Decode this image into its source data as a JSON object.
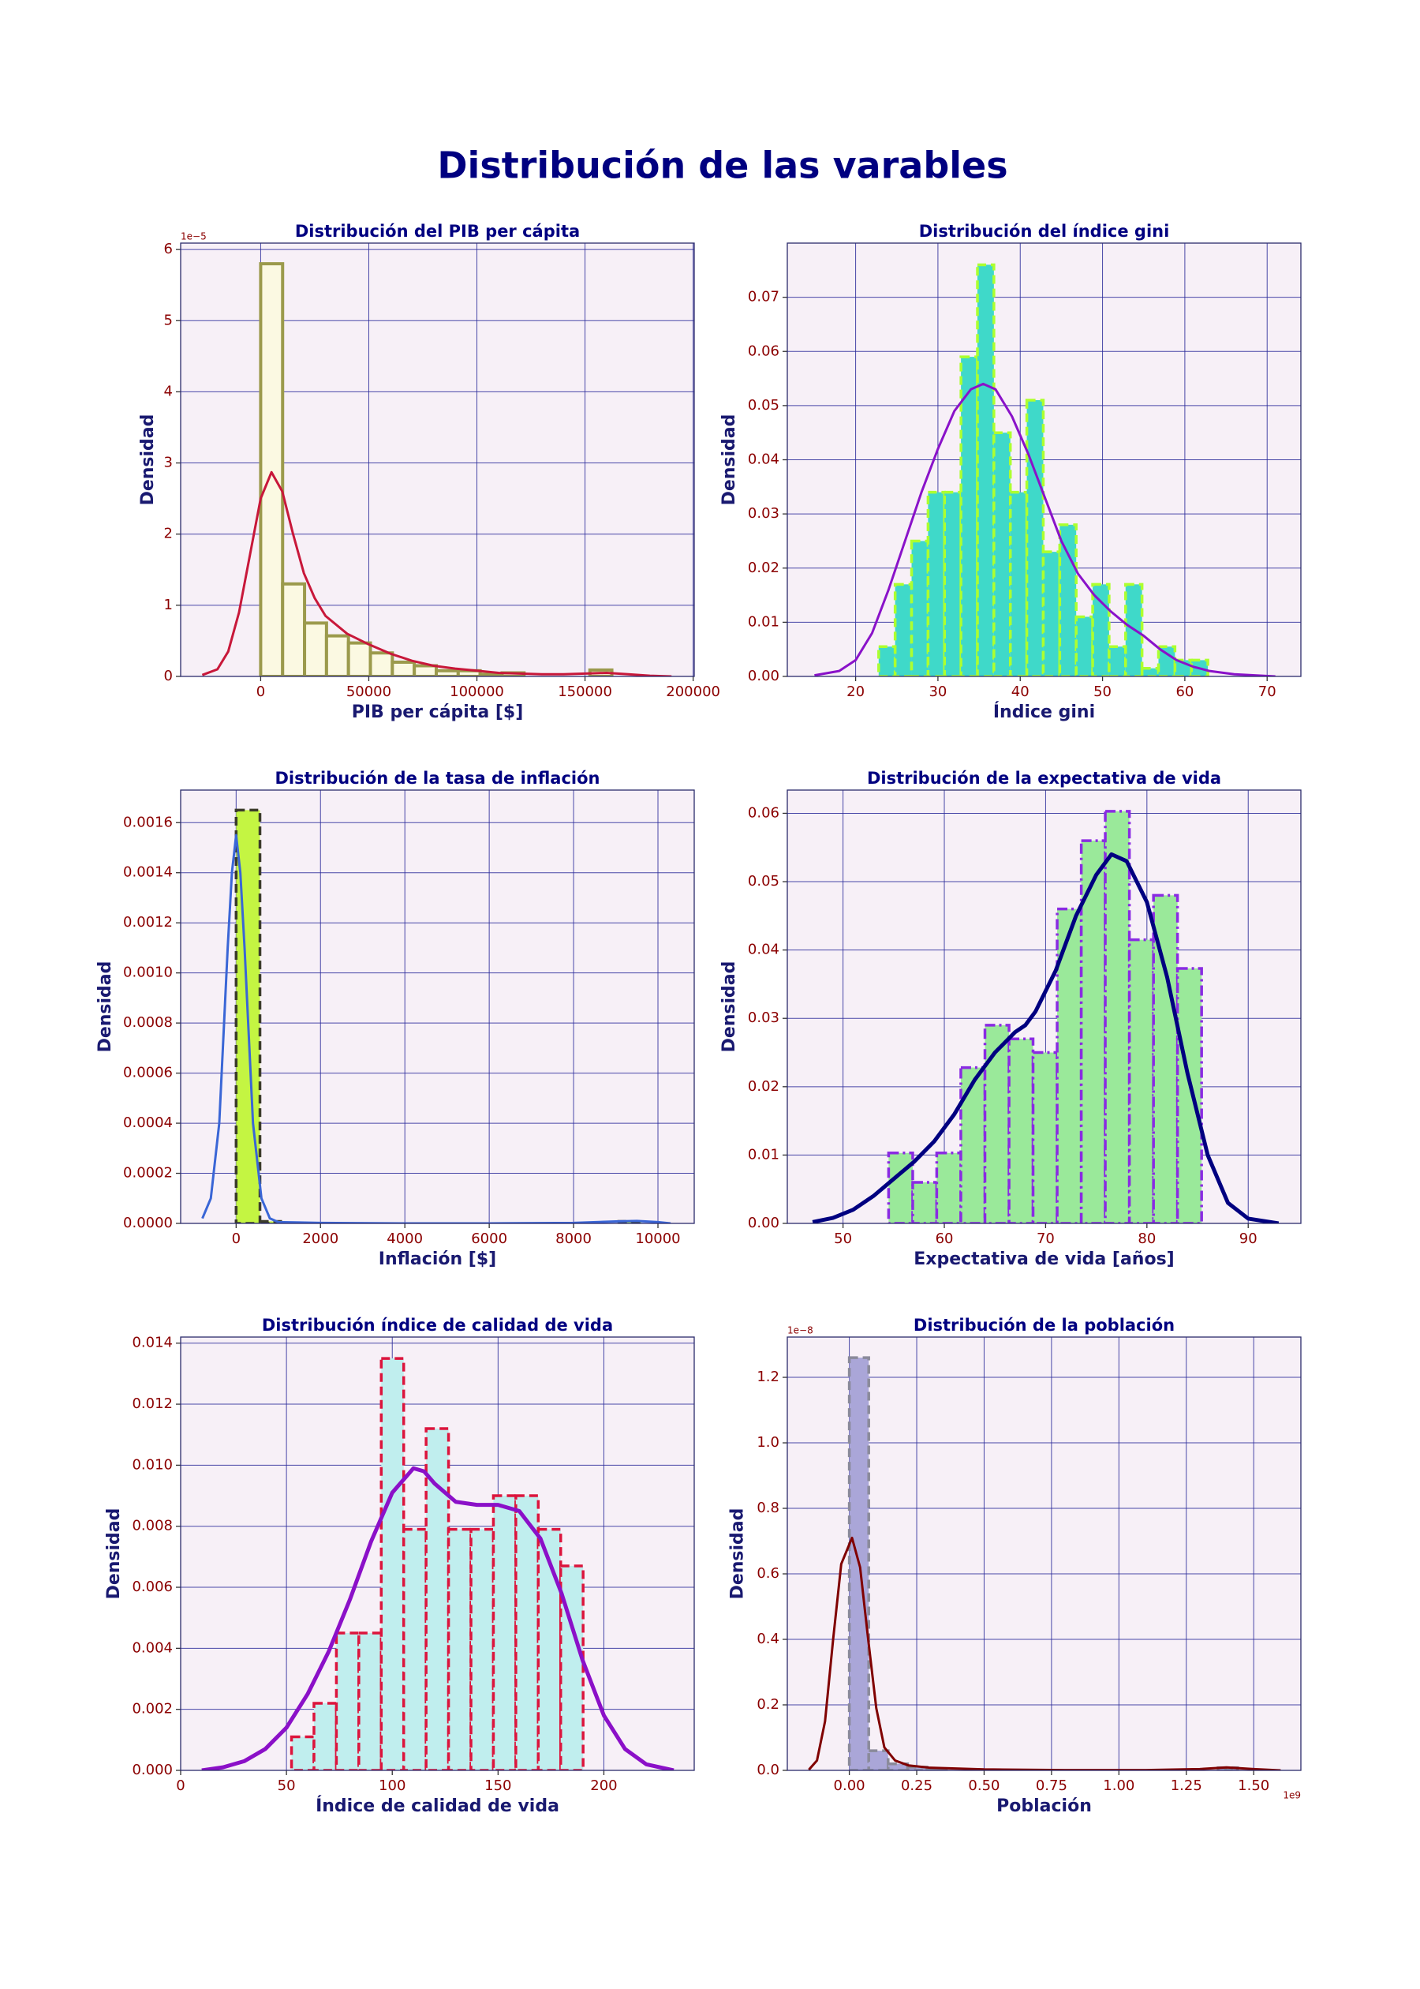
{
  "title": "Distribución de las varables",
  "chart_data": [
    {
      "type": "histogram",
      "title": "Distribución del PIB per cápita",
      "xlabel": "PIB per cápita [$]",
      "ylabel": "Densidad",
      "y_offset": "1e−5",
      "bins": [
        0,
        10150,
        20300,
        30450,
        40600,
        50750,
        60900,
        71050,
        81200,
        91350,
        101500,
        111650,
        121800,
        131950,
        142100,
        152250,
        162400
      ],
      "values": [
        5.8,
        1.3,
        0.75,
        0.57,
        0.47,
        0.33,
        0.2,
        0.15,
        0.08,
        0.08,
        0.03,
        0.05,
        0,
        0,
        0,
        0.09
      ],
      "color": "#fbf9e2",
      "edgecolor": "#9b9a4c",
      "edge_style": "solid",
      "kde": {
        "color": "#c8183a",
        "x": [
          -27000,
          -20000,
          -15000,
          -10000,
          -5000,
          0,
          5000,
          10000,
          15000,
          20000,
          25000,
          30000,
          40000,
          50000,
          60000,
          70000,
          80000,
          90000,
          100000,
          110000,
          120000,
          130000,
          140000,
          150000,
          160000,
          170000,
          180000,
          190000
        ],
        "y": [
          0.02,
          0.1,
          0.35,
          0.9,
          1.7,
          2.5,
          2.87,
          2.6,
          2.0,
          1.45,
          1.1,
          0.85,
          0.6,
          0.45,
          0.32,
          0.22,
          0.15,
          0.11,
          0.08,
          0.05,
          0.04,
          0.03,
          0.03,
          0.04,
          0.05,
          0.03,
          0.01,
          0.0
        ]
      },
      "xlim": [
        -37000,
        200500
      ],
      "ylim": [
        0,
        6.09
      ],
      "xticks": [
        0,
        50000,
        100000,
        150000,
        200000
      ],
      "yticks": [
        0,
        1,
        2,
        3,
        4,
        5,
        6
      ],
      "grid": true
    },
    {
      "type": "histogram",
      "title": "Distribución del índice gini",
      "xlabel": "Índice gini",
      "ylabel": "Densidad",
      "bins": [
        22.8,
        24.8,
        26.8,
        28.8,
        30.8,
        32.8,
        34.8,
        36.8,
        38.8,
        40.8,
        42.8,
        44.8,
        46.8,
        48.8,
        50.8,
        52.8,
        54.8,
        56.8,
        58.8,
        60.8,
        62.8
      ],
      "values": [
        0.0055,
        0.017,
        0.025,
        0.034,
        0.034,
        0.059,
        0.076,
        0.045,
        0.034,
        0.051,
        0.023,
        0.028,
        0.011,
        0.017,
        0.0055,
        0.017,
        0.0015,
        0.0055,
        0.003,
        0.003
      ],
      "color": "#3fd9c9",
      "edgecolor": "#adff2f",
      "edge_style": "dashed",
      "kde": {
        "color": "#8a12c9",
        "x": [
          15,
          18,
          20,
          22,
          24,
          26,
          28,
          30,
          32,
          34,
          35.5,
          37,
          39,
          41,
          43,
          45,
          47,
          49,
          51,
          53,
          55,
          57,
          59,
          61,
          63,
          66,
          71
        ],
        "y": [
          0.0002,
          0.001,
          0.003,
          0.008,
          0.016,
          0.025,
          0.034,
          0.042,
          0.049,
          0.053,
          0.054,
          0.053,
          0.048,
          0.041,
          0.033,
          0.025,
          0.019,
          0.015,
          0.012,
          0.0095,
          0.0075,
          0.005,
          0.003,
          0.0018,
          0.001,
          0.0004,
          0.0
        ]
      },
      "xlim": [
        11.7,
        74.1
      ],
      "ylim": [
        0,
        0.08
      ],
      "xticks": [
        20,
        30,
        40,
        50,
        60,
        70
      ],
      "yticks": [
        {
          "value": 0,
          "label": "0.00"
        },
        {
          "value": 0.01,
          "label": "0.01"
        },
        {
          "value": 0.02,
          "label": "0.02"
        },
        {
          "value": 0.03,
          "label": "0.03"
        },
        {
          "value": 0.04,
          "label": "0.04"
        },
        {
          "value": 0.05,
          "label": "0.05"
        },
        {
          "value": 0.06,
          "label": "0.06"
        },
        {
          "value": 0.07,
          "label": "0.07"
        }
      ],
      "grid": true
    },
    {
      "type": "histogram",
      "title": "Distribución de la tasa de inflación",
      "xlabel": "Inflación [$]",
      "ylabel": "Densidad",
      "bins": [
        0,
        565,
        1130,
        1695,
        2260,
        2825,
        3390,
        3955,
        4520,
        5085,
        5650,
        6215,
        6780,
        7345,
        7910,
        8475,
        9040,
        9605,
        10170
      ],
      "values": [
        0.00165,
        8e-06,
        0,
        0,
        0,
        0,
        0,
        0,
        0,
        0,
        0,
        0,
        0,
        0,
        0,
        0,
        8e-06,
        0
      ],
      "color": "#c4f542",
      "edgecolor": "#3b3b2b",
      "edge_style": "dashed",
      "kde": {
        "color": "#3a66d6",
        "x": [
          -800,
          -600,
          -400,
          -200,
          -100,
          0,
          100,
          200,
          400,
          600,
          800,
          1000,
          2000,
          4000,
          6000,
          8000,
          9000,
          9500,
          10000,
          10300
        ],
        "y": [
          2e-05,
          0.0001,
          0.0004,
          0.0011,
          0.0014,
          0.00155,
          0.0014,
          0.0011,
          0.0004,
          0.0001,
          2e-05,
          5e-06,
          2e-06,
          0.0,
          0.0,
          2e-06,
          8e-06,
          1e-05,
          5e-06,
          0.0
        ]
      },
      "xlim": [
        -1315,
        10860
      ],
      "ylim": [
        0,
        0.00173
      ],
      "xticks": [
        0,
        2000,
        4000,
        6000,
        8000,
        10000
      ],
      "yticks": [
        {
          "value": 0,
          "label": "0.0000"
        },
        {
          "value": 0.0002,
          "label": "0.0002"
        },
        {
          "value": 0.0004,
          "label": "0.0004"
        },
        {
          "value": 0.0006,
          "label": "0.0006"
        },
        {
          "value": 0.0008,
          "label": "0.0008"
        },
        {
          "value": 0.001,
          "label": "0.0010"
        },
        {
          "value": 0.0012,
          "label": "0.0012"
        },
        {
          "value": 0.0014,
          "label": "0.0014"
        },
        {
          "value": 0.0016,
          "label": "0.0016"
        }
      ],
      "grid": true
    },
    {
      "type": "histogram",
      "title": "Distribución de la expectativa de vida",
      "xlabel": "Expectativa de vida [años]",
      "ylabel": "Densidad",
      "bins": [
        54.5,
        56.88,
        59.25,
        61.63,
        64.01,
        66.39,
        68.76,
        71.14,
        73.52,
        75.89,
        78.27,
        80.65,
        83.02,
        85.4
      ],
      "values": [
        0.0103,
        0.006,
        0.0103,
        0.0228,
        0.029,
        0.027,
        0.025,
        0.046,
        0.056,
        0.0603,
        0.0415,
        0.048,
        0.0373
      ],
      "color": "#9ae99a",
      "edgecolor": "#8a2be2",
      "edge_style": "dashdot",
      "kde": {
        "color": "#000080",
        "x": [
          47,
          49,
          51,
          53,
          55,
          57,
          59,
          61,
          63,
          65,
          67,
          68,
          69,
          71,
          73,
          75,
          76.5,
          78,
          80,
          82,
          84,
          86,
          88,
          90,
          93
        ],
        "y": [
          0.0002,
          0.0008,
          0.002,
          0.004,
          0.0065,
          0.009,
          0.012,
          0.016,
          0.021,
          0.025,
          0.028,
          0.029,
          0.031,
          0.037,
          0.045,
          0.051,
          0.054,
          0.053,
          0.047,
          0.036,
          0.022,
          0.01,
          0.003,
          0.0007,
          0.0
        ]
      },
      "xlim": [
        44.5,
        95.2
      ],
      "ylim": [
        0,
        0.0634
      ],
      "xticks": [
        50,
        60,
        70,
        80,
        90
      ],
      "yticks": [
        {
          "value": 0,
          "label": "0.00"
        },
        {
          "value": 0.01,
          "label": "0.01"
        },
        {
          "value": 0.02,
          "label": "0.02"
        },
        {
          "value": 0.03,
          "label": "0.03"
        },
        {
          "value": 0.04,
          "label": "0.04"
        },
        {
          "value": 0.05,
          "label": "0.05"
        },
        {
          "value": 0.06,
          "label": "0.06"
        }
      ],
      "grid": true
    },
    {
      "type": "histogram",
      "title": "Distribución índice de calidad de vida",
      "xlabel": "Índice de calidad de vida",
      "ylabel": "Densidad",
      "bins": [
        52.4,
        63,
        73.6,
        84.2,
        94.8,
        105.4,
        116,
        126.6,
        137.2,
        147.8,
        158.4,
        169,
        179.6,
        190.2
      ],
      "values": [
        0.0011,
        0.0022,
        0.0045,
        0.0045,
        0.0135,
        0.0079,
        0.0112,
        0.0079,
        0.0079,
        0.009,
        0.009,
        0.0079,
        0.0067
      ],
      "color": "#c0eeee",
      "edgecolor": "#dc143c",
      "edge_style": "dashed",
      "kde": {
        "color": "#8b10c8",
        "x": [
          10,
          20,
          30,
          40,
          50,
          60,
          70,
          80,
          90,
          100,
          110,
          115,
          120,
          130,
          140,
          150,
          160,
          170,
          180,
          190,
          200,
          210,
          220,
          233
        ],
        "y": [
          0.0,
          0.0001,
          0.0003,
          0.0007,
          0.0014,
          0.0025,
          0.0039,
          0.0056,
          0.0075,
          0.0091,
          0.0099,
          0.0098,
          0.0094,
          0.0088,
          0.0087,
          0.0087,
          0.0085,
          0.0076,
          0.0058,
          0.0036,
          0.0018,
          0.0007,
          0.0002,
          0.0
        ]
      },
      "xlim": [
        0,
        242.7
      ],
      "ylim": [
        0,
        0.0142
      ],
      "xticks": [
        0,
        50,
        100,
        150,
        200
      ],
      "yticks": [
        {
          "value": 0,
          "label": "0.000"
        },
        {
          "value": 0.002,
          "label": "0.002"
        },
        {
          "value": 0.004,
          "label": "0.004"
        },
        {
          "value": 0.006,
          "label": "0.006"
        },
        {
          "value": 0.008,
          "label": "0.008"
        },
        {
          "value": 0.01,
          "label": "0.010"
        },
        {
          "value": 0.012,
          "label": "0.012"
        },
        {
          "value": 0.014,
          "label": "0.014"
        }
      ],
      "grid": true
    },
    {
      "type": "histogram",
      "title": "Distribución de la población",
      "xlabel": "Población",
      "ylabel": "Densidad",
      "y_offset": "1e−8",
      "x_offset": "1e9",
      "bins": [
        0,
        0.072,
        0.144,
        0.216,
        0.288,
        0.36,
        0.432,
        0.504,
        0.576,
        0.648,
        0.72,
        0.792,
        0.864,
        0.936,
        1.008,
        1.08,
        1.152,
        1.224,
        1.296,
        1.368,
        1.44
      ],
      "values": [
        1.26,
        0.06,
        0.02,
        0.01,
        0.005,
        0,
        0,
        0,
        0,
        0,
        0,
        0,
        0,
        0,
        0,
        0,
        0,
        0,
        0,
        0.008
      ],
      "color": "#aaa6d8",
      "edgecolor": "#8a8a9a",
      "edge_style": "dashed",
      "kde": {
        "color": "#800000",
        "x": [
          -0.15,
          -0.12,
          -0.09,
          -0.06,
          -0.03,
          0.01,
          0.04,
          0.07,
          0.1,
          0.13,
          0.17,
          0.22,
          0.3,
          0.5,
          0.8,
          1.1,
          1.3,
          1.4,
          1.5,
          1.6
        ],
        "y": [
          0.002,
          0.03,
          0.15,
          0.4,
          0.63,
          0.71,
          0.62,
          0.4,
          0.19,
          0.07,
          0.03,
          0.015,
          0.008,
          0.003,
          0.001,
          0.001,
          0.004,
          0.009,
          0.004,
          0.0
        ]
      },
      "xlim": [
        -0.23,
        1.675
      ],
      "ylim": [
        0,
        1.323
      ],
      "xticks": [
        {
          "value": 0,
          "label": "0.00"
        },
        {
          "value": 0.25,
          "label": "0.25"
        },
        {
          "value": 0.5,
          "label": "0.50"
        },
        {
          "value": 0.75,
          "label": "0.75"
        },
        {
          "value": 1,
          "label": "1.00"
        },
        {
          "value": 1.25,
          "label": "1.25"
        },
        {
          "value": 1.5,
          "label": "1.50"
        }
      ],
      "yticks": [
        {
          "value": 0,
          "label": "0.0"
        },
        {
          "value": 0.2,
          "label": "0.2"
        },
        {
          "value": 0.4,
          "label": "0.4"
        },
        {
          "value": 0.6,
          "label": "0.6"
        },
        {
          "value": 0.8,
          "label": "0.8"
        },
        {
          "value": 1,
          "label": "1.0"
        },
        {
          "value": 1.2,
          "label": "1.2"
        }
      ],
      "grid": true
    }
  ]
}
